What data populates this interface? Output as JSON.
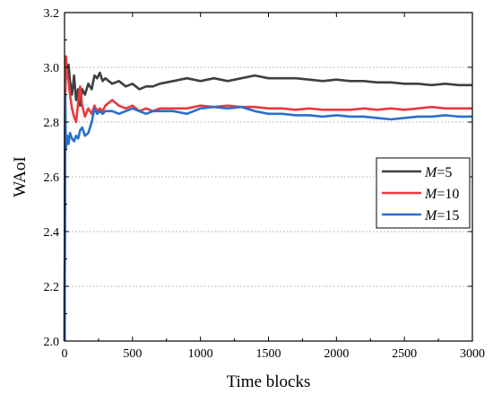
{
  "chart_data": {
    "type": "line",
    "title": "",
    "xlabel": "Time blocks",
    "ylabel": "WAoI",
    "xlim": [
      0,
      3000
    ],
    "ylim": [
      2.0,
      3.2
    ],
    "xticks": [
      0,
      500,
      1000,
      1500,
      2000,
      2500,
      3000
    ],
    "yticks": [
      2.0,
      2.2,
      2.4,
      2.6,
      2.8,
      3.0,
      3.2
    ],
    "ytick_labels": [
      "2.0",
      "2.2",
      "2.4",
      "2.6",
      "2.8",
      "3.0",
      "3.2"
    ],
    "grid": "horizontal-dotted",
    "legend_position": "right",
    "series": [
      {
        "name": "M=5",
        "legend_var": "M",
        "legend_val": "=5",
        "color": "#3f3f3f",
        "x": [
          0,
          5,
          10,
          20,
          30,
          40,
          55,
          70,
          85,
          100,
          115,
          130,
          150,
          175,
          200,
          220,
          240,
          260,
          280,
          300,
          350,
          400,
          450,
          500,
          550,
          600,
          650,
          700,
          800,
          900,
          1000,
          1100,
          1200,
          1300,
          1400,
          1500,
          1600,
          1700,
          1800,
          1900,
          2000,
          2100,
          2200,
          2300,
          2400,
          2500,
          2600,
          2700,
          2800,
          2900,
          3000
        ],
        "y": [
          2.0,
          2.9,
          3.02,
          2.98,
          3.01,
          2.95,
          2.9,
          2.97,
          2.88,
          2.92,
          2.86,
          2.92,
          2.9,
          2.94,
          2.92,
          2.97,
          2.96,
          2.98,
          2.95,
          2.96,
          2.94,
          2.95,
          2.93,
          2.94,
          2.92,
          2.93,
          2.93,
          2.94,
          2.95,
          2.96,
          2.95,
          2.96,
          2.95,
          2.96,
          2.97,
          2.96,
          2.96,
          2.96,
          2.955,
          2.95,
          2.955,
          2.95,
          2.95,
          2.945,
          2.945,
          2.94,
          2.94,
          2.935,
          2.94,
          2.935,
          2.935
        ]
      },
      {
        "name": "M=10",
        "legend_var": "M",
        "legend_val": "=10",
        "color": "#e8393d",
        "x": [
          0,
          5,
          10,
          20,
          30,
          40,
          55,
          70,
          85,
          100,
          115,
          130,
          150,
          175,
          200,
          220,
          240,
          260,
          280,
          300,
          350,
          400,
          450,
          500,
          550,
          600,
          650,
          700,
          800,
          900,
          1000,
          1100,
          1200,
          1300,
          1400,
          1500,
          1600,
          1700,
          1800,
          1900,
          2000,
          2100,
          2200,
          2300,
          2400,
          2500,
          2600,
          2700,
          2800,
          2900,
          3000
        ],
        "y": [
          2.0,
          2.95,
          3.04,
          2.97,
          2.95,
          2.9,
          2.85,
          2.82,
          2.8,
          2.87,
          2.93,
          2.86,
          2.82,
          2.85,
          2.83,
          2.86,
          2.84,
          2.85,
          2.84,
          2.86,
          2.88,
          2.86,
          2.85,
          2.86,
          2.84,
          2.85,
          2.84,
          2.85,
          2.85,
          2.85,
          2.86,
          2.855,
          2.86,
          2.855,
          2.855,
          2.85,
          2.85,
          2.845,
          2.85,
          2.845,
          2.845,
          2.845,
          2.85,
          2.845,
          2.85,
          2.845,
          2.85,
          2.855,
          2.85,
          2.85,
          2.85
        ]
      },
      {
        "name": "M=15",
        "legend_var": "M",
        "legend_val": "=15",
        "color": "#2a6fc9",
        "x": [
          0,
          5,
          10,
          20,
          30,
          40,
          55,
          70,
          85,
          100,
          115,
          130,
          150,
          175,
          200,
          220,
          240,
          260,
          280,
          300,
          350,
          400,
          450,
          500,
          550,
          600,
          650,
          700,
          800,
          900,
          1000,
          1100,
          1200,
          1300,
          1400,
          1500,
          1600,
          1700,
          1800,
          1900,
          2000,
          2100,
          2200,
          2300,
          2400,
          2500,
          2600,
          2700,
          2800,
          2900,
          3000
        ],
        "y": [
          2.0,
          2.9,
          2.7,
          2.75,
          2.72,
          2.76,
          2.74,
          2.73,
          2.75,
          2.74,
          2.77,
          2.78,
          2.75,
          2.76,
          2.8,
          2.85,
          2.83,
          2.84,
          2.83,
          2.84,
          2.84,
          2.83,
          2.84,
          2.85,
          2.84,
          2.83,
          2.84,
          2.84,
          2.84,
          2.83,
          2.85,
          2.855,
          2.85,
          2.855,
          2.84,
          2.83,
          2.83,
          2.825,
          2.825,
          2.82,
          2.825,
          2.82,
          2.82,
          2.815,
          2.81,
          2.815,
          2.82,
          2.82,
          2.825,
          2.82,
          2.82
        ]
      }
    ]
  }
}
